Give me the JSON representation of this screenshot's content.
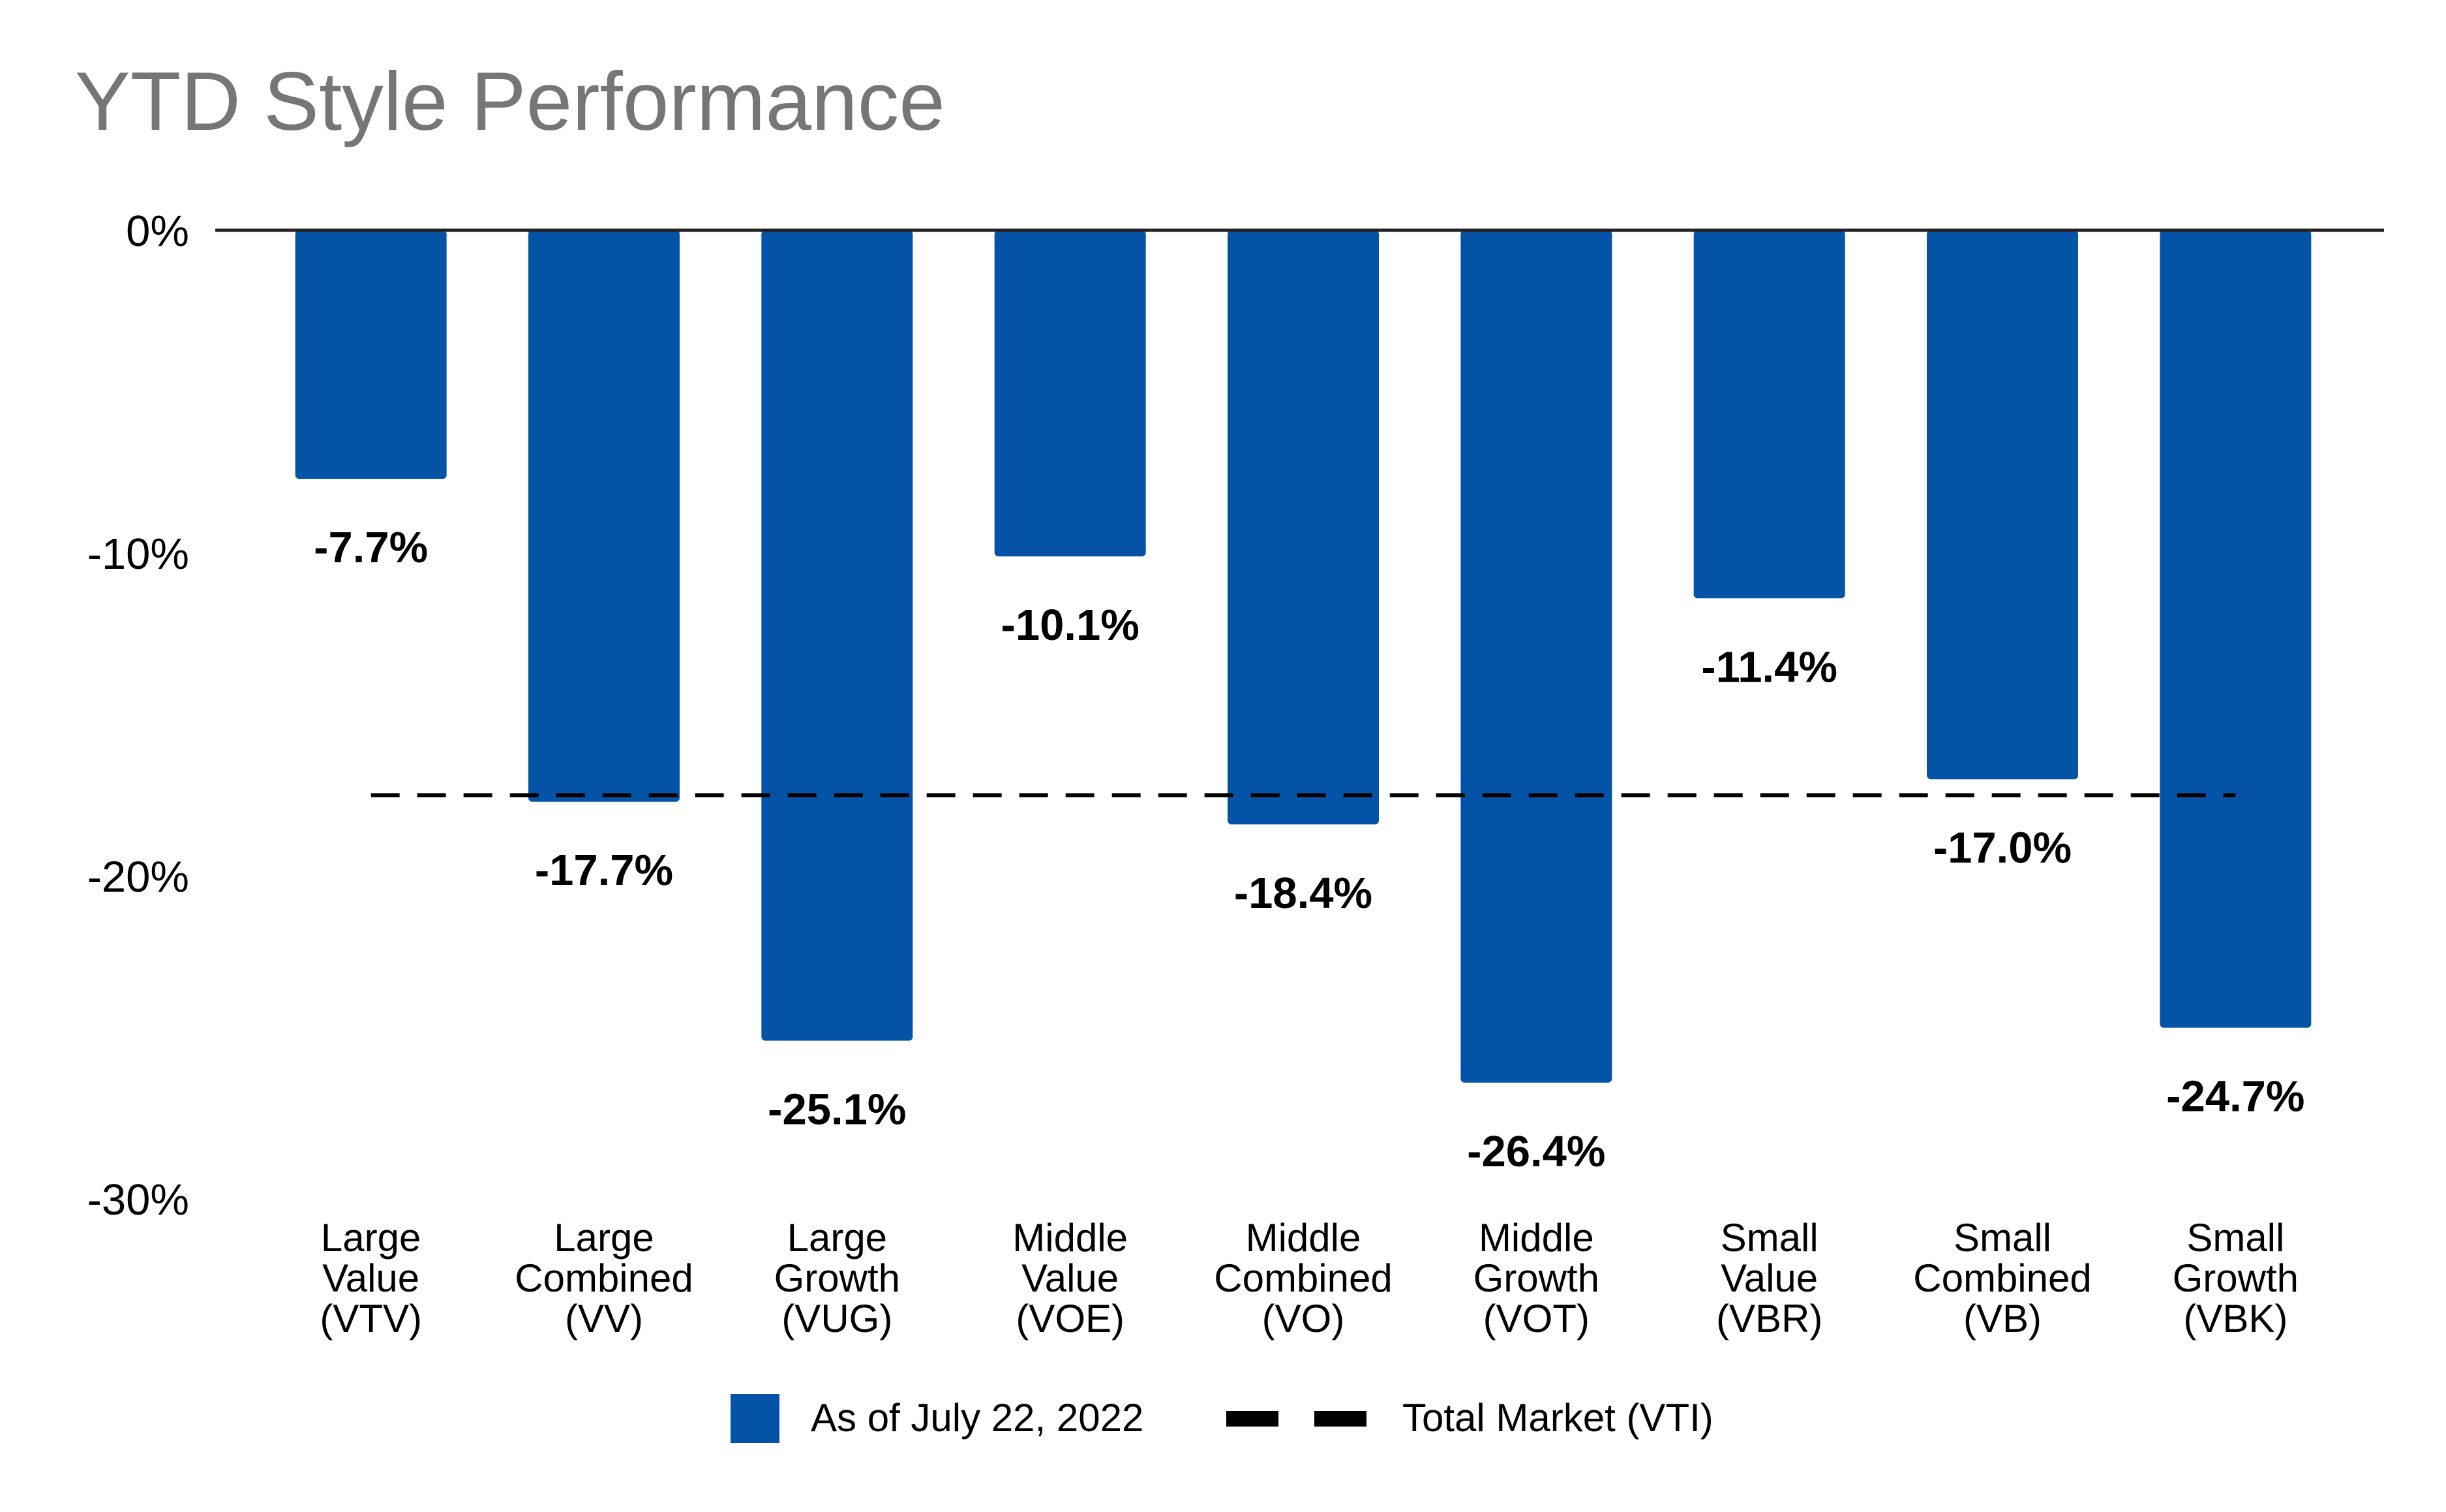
{
  "chart_data": {
    "type": "bar",
    "title": "YTD Style Performance",
    "categories": [
      [
        "Large",
        "Value",
        "(VTV)"
      ],
      [
        "Large",
        "Combined",
        "(VV)"
      ],
      [
        "Large",
        "Growth",
        "(VUG)"
      ],
      [
        "Middle",
        "Value",
        "(VOE)"
      ],
      [
        "Middle",
        "Combined",
        "(VO)"
      ],
      [
        "Middle",
        "Growth",
        "(VOT)"
      ],
      [
        "Small",
        "Value",
        "(VBR)"
      ],
      [
        "Small",
        "Combined",
        "(VB)"
      ],
      [
        "Small",
        "Growth",
        "(VBK)"
      ]
    ],
    "series": [
      {
        "name": "As of July 22, 2022",
        "type": "bar",
        "color": "#0453A6",
        "values": [
          -7.7,
          -17.7,
          -25.1,
          -10.1,
          -18.4,
          -26.4,
          -11.4,
          -17.0,
          -24.7
        ],
        "labels": [
          "-7.7%",
          "-17.7%",
          "-25.1%",
          "-10.1%",
          "-18.4%",
          "-26.4%",
          "-11.4%",
          "-17.0%",
          "-24.7%"
        ]
      },
      {
        "name": "Total Market (VTI)",
        "type": "line",
        "style": "dashed",
        "color": "#000000",
        "value": -17.5
      }
    ],
    "ylim": [
      -30,
      0
    ],
    "yticks": [
      0,
      -10,
      -20,
      -30
    ],
    "ytick_labels": [
      "0%",
      "-10%",
      "-20%",
      "-30%"
    ],
    "xlabel": "",
    "ylabel": "",
    "grid": false,
    "legend_position": "bottom-center"
  }
}
